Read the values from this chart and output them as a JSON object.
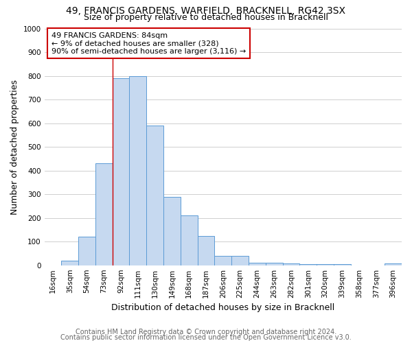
{
  "title_line1": "49, FRANCIS GARDENS, WARFIELD, BRACKNELL, RG42 3SX",
  "title_line2": "Size of property relative to detached houses in Bracknell",
  "xlabel": "Distribution of detached houses by size in Bracknell",
  "ylabel": "Number of detached properties",
  "footer_line1": "Contains HM Land Registry data © Crown copyright and database right 2024.",
  "footer_line2": "Contains public sector information licensed under the Open Government Licence v3.0.",
  "annotation_line1": "49 FRANCIS GARDENS: 84sqm",
  "annotation_line2": "← 9% of detached houses are smaller (328)",
  "annotation_line3": "90% of semi-detached houses are larger (3,116) →",
  "bar_labels": [
    "16sqm",
    "35sqm",
    "54sqm",
    "73sqm",
    "92sqm",
    "111sqm",
    "130sqm",
    "149sqm",
    "168sqm",
    "187sqm",
    "206sqm",
    "225sqm",
    "244sqm",
    "263sqm",
    "282sqm",
    "301sqm",
    "320sqm",
    "339sqm",
    "358sqm",
    "377sqm",
    "396sqm"
  ],
  "bar_values": [
    0,
    18,
    120,
    430,
    790,
    800,
    590,
    290,
    210,
    125,
    40,
    40,
    12,
    10,
    8,
    5,
    5,
    5,
    0,
    0,
    8
  ],
  "bar_color": "#c6d9f0",
  "bar_edge_color": "#5b9bd5",
  "highlight_bar_index": 4,
  "highlight_line_color": "#cc0000",
  "ylim": [
    0,
    1000
  ],
  "yticks": [
    0,
    100,
    200,
    300,
    400,
    500,
    600,
    700,
    800,
    900,
    1000
  ],
  "annotation_box_color": "#ffffff",
  "annotation_box_edge": "#cc0000",
  "bg_color": "#ffffff",
  "grid_color": "#c8c8c8",
  "title_fontsize": 10,
  "subtitle_fontsize": 9,
  "axis_label_fontsize": 9,
  "tick_fontsize": 7.5,
  "annotation_fontsize": 8,
  "footer_fontsize": 7
}
